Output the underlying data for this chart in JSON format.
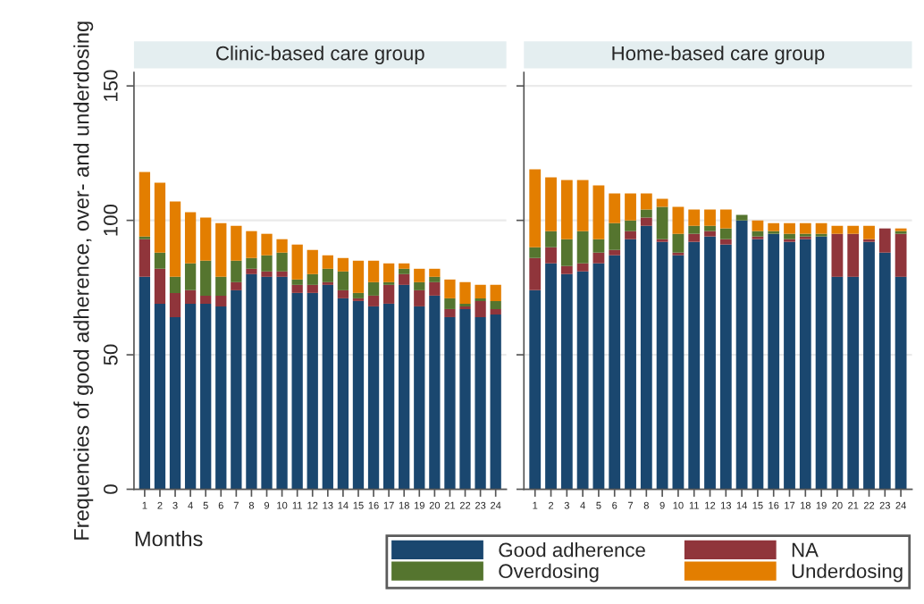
{
  "chart_data": [
    {
      "type": "bar",
      "stacked": true,
      "title": "Clinic-based care group",
      "xlabel": "Months",
      "ylabel": "Frequencies of good adherence, over- and underdosing",
      "categories": [
        "1",
        "2",
        "3",
        "4",
        "5",
        "6",
        "7",
        "8",
        "9",
        "10",
        "11",
        "12",
        "13",
        "14",
        "15",
        "16",
        "17",
        "18",
        "19",
        "20",
        "21",
        "22",
        "23",
        "24"
      ],
      "ylim": [
        0,
        155
      ],
      "yticks": [
        0,
        50,
        100,
        150
      ],
      "grid": "y",
      "legend": "bottom",
      "series": [
        {
          "name": "Good adherence",
          "color": "#1a476f",
          "values": [
            79,
            69,
            64,
            69,
            69,
            68,
            74,
            80,
            79,
            79,
            73,
            73,
            76,
            71,
            70,
            68,
            69,
            76,
            68,
            72,
            64,
            67,
            64,
            65
          ]
        },
        {
          "name": "NA",
          "color": "#90353b",
          "values": [
            14,
            13,
            9,
            5,
            3,
            4,
            3,
            2,
            2,
            2,
            3,
            3,
            1,
            3,
            1,
            4,
            7,
            4,
            6,
            5,
            3,
            1,
            6,
            2
          ]
        },
        {
          "name": "Overdosing",
          "color": "#55752f",
          "values": [
            1,
            6,
            6,
            10,
            13,
            7,
            8,
            4,
            6,
            7,
            2,
            4,
            5,
            7,
            2,
            5,
            1,
            2,
            3,
            2,
            4,
            1,
            1,
            3
          ]
        },
        {
          "name": "Underdosing",
          "color": "#e37e00",
          "values": [
            24,
            26,
            28,
            19,
            16,
            20,
            13,
            10,
            8,
            5,
            13,
            9,
            5,
            5,
            12,
            8,
            7,
            2,
            5,
            3,
            7,
            8,
            5,
            6
          ]
        }
      ]
    },
    {
      "type": "bar",
      "stacked": true,
      "title": "Home-based care group",
      "categories": [
        "1",
        "2",
        "3",
        "4",
        "5",
        "6",
        "7",
        "8",
        "9",
        "10",
        "11",
        "12",
        "13",
        "14",
        "15",
        "16",
        "17",
        "18",
        "19",
        "20",
        "21",
        "22",
        "23",
        "24"
      ],
      "ylim": [
        0,
        155
      ],
      "yticks": [
        0,
        50,
        100,
        150
      ],
      "grid": "y",
      "tick_labels": "x",
      "series": [
        {
          "color": "#1a476f",
          "values": [
            74,
            84,
            80,
            81,
            84,
            87,
            93,
            98,
            92,
            87,
            92,
            94,
            91,
            100,
            93,
            95,
            92,
            93,
            94,
            79,
            79,
            92,
            88,
            79
          ]
        },
        {
          "color": "#90353b",
          "values": [
            12,
            6,
            3,
            3,
            4,
            2,
            3,
            3,
            1,
            1,
            3,
            2,
            2,
            0,
            1,
            0,
            1,
            1,
            0,
            16,
            16,
            1,
            9,
            16
          ]
        },
        {
          "color": "#55752f",
          "values": [
            4,
            6,
            10,
            12,
            5,
            10,
            4,
            3,
            12,
            7,
            3,
            2,
            4,
            2,
            2,
            1,
            2,
            1,
            1,
            0,
            0,
            0,
            0,
            1
          ]
        },
        {
          "color": "#e37e00",
          "values": [
            29,
            20,
            22,
            19,
            20,
            11,
            10,
            6,
            3,
            10,
            6,
            6,
            7,
            0,
            4,
            3,
            4,
            4,
            4,
            3,
            3,
            5,
            0,
            1
          ]
        }
      ]
    }
  ]
}
